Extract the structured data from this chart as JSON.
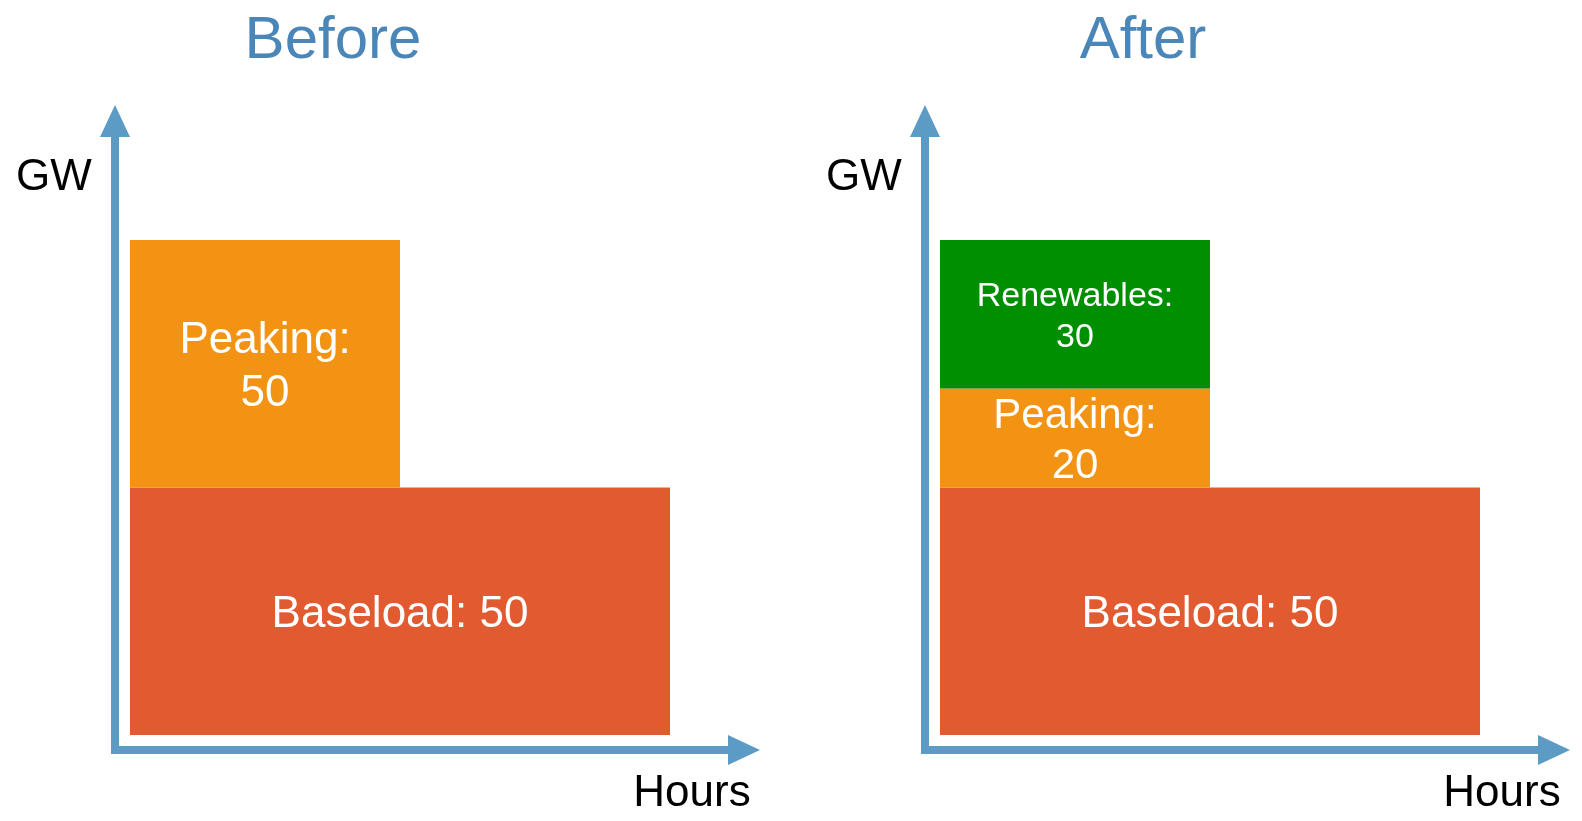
{
  "chart_data": [
    {
      "type": "bar",
      "title": "Before",
      "xlabel": "Hours",
      "ylabel": "GW",
      "stacked": true,
      "legend": false,
      "categories": [
        null,
        null
      ],
      "series": [
        {
          "name": "Baseload:",
          "color": "#e15a30",
          "values": [
            50,
            50
          ],
          "value_labels": [
            "50",
            null
          ]
        },
        {
          "name": "Peaking:",
          "color": "#f39314",
          "values": [
            50,
            null
          ],
          "value_labels": [
            "50",
            null
          ]
        }
      ]
    },
    {
      "type": "bar",
      "title": "After",
      "xlabel": "Hours",
      "ylabel": "GW",
      "stacked": true,
      "legend": false,
      "categories": [
        null,
        null
      ],
      "series": [
        {
          "name": "Baseload:",
          "color": "#e15a30",
          "values": [
            50,
            50
          ],
          "value_labels": [
            "50",
            null
          ]
        },
        {
          "name": "Peaking:",
          "color": "#f39314",
          "values": [
            20,
            null
          ],
          "value_labels": [
            "20",
            null
          ]
        },
        {
          "name": "Renewables:",
          "color": "#008f00",
          "values": [
            30,
            null
          ],
          "value_labels": [
            "30",
            null
          ]
        }
      ]
    }
  ]
}
